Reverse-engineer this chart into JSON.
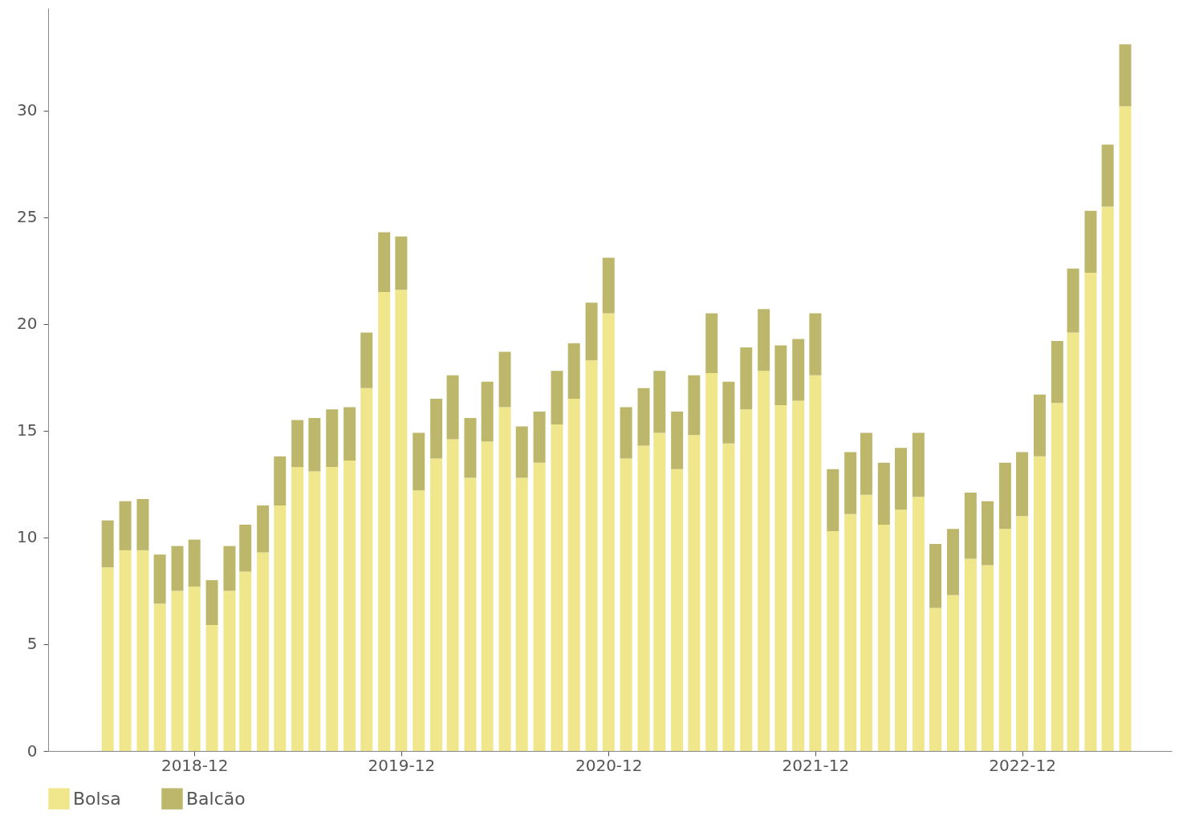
{
  "chart_data": {
    "type": "bar",
    "stacked": true,
    "x": [
      "2018-07",
      "2018-08",
      "2018-09",
      "2018-10",
      "2018-11",
      "2018-12",
      "2019-01",
      "2019-02",
      "2019-03",
      "2019-04",
      "2019-05",
      "2019-06",
      "2019-07",
      "2019-08",
      "2019-09",
      "2019-10",
      "2019-11",
      "2019-12",
      "2020-01",
      "2020-02",
      "2020-03",
      "2020-04",
      "2020-05",
      "2020-06",
      "2020-07",
      "2020-08",
      "2020-09",
      "2020-10",
      "2020-11",
      "2020-12",
      "2021-01",
      "2021-02",
      "2021-03",
      "2021-04",
      "2021-05",
      "2021-06",
      "2021-07",
      "2021-08",
      "2021-09",
      "2021-10",
      "2021-11",
      "2021-12",
      "2022-01",
      "2022-02",
      "2022-03",
      "2022-04",
      "2022-05",
      "2022-06",
      "2022-07",
      "2022-08",
      "2022-09",
      "2022-10",
      "2022-11",
      "2022-12",
      "2023-01",
      "2023-02",
      "2023-03",
      "2023-04",
      "2023-05",
      "2023-06"
    ],
    "series": [
      {
        "name": "Bolsa",
        "color": "#f0e68c",
        "values": [
          8.6,
          9.4,
          9.4,
          6.9,
          7.5,
          7.7,
          5.9,
          7.5,
          8.4,
          9.3,
          11.5,
          13.3,
          13.1,
          13.3,
          13.6,
          17.0,
          21.5,
          21.6,
          12.2,
          13.7,
          14.6,
          12.8,
          14.5,
          16.1,
          12.8,
          13.5,
          15.3,
          16.5,
          18.3,
          20.5,
          13.7,
          14.3,
          14.9,
          13.2,
          14.8,
          17.7,
          14.4,
          16.0,
          17.8,
          16.2,
          16.4,
          17.6,
          10.3,
          11.1,
          12.0,
          10.6,
          11.3,
          11.9,
          6.7,
          7.3,
          9.0,
          8.7,
          10.4,
          11.0,
          13.8,
          16.3,
          19.6,
          22.4,
          25.5,
          30.2
        ]
      },
      {
        "name": "Balcão",
        "color": "#bdb76b",
        "values": [
          2.2,
          2.3,
          2.4,
          2.3,
          2.1,
          2.2,
          2.1,
          2.1,
          2.2,
          2.2,
          2.3,
          2.2,
          2.5,
          2.7,
          2.5,
          2.6,
          2.8,
          2.5,
          2.7,
          2.8,
          3.0,
          2.8,
          2.8,
          2.6,
          2.4,
          2.4,
          2.5,
          2.6,
          2.7,
          2.6,
          2.4,
          2.7,
          2.9,
          2.7,
          2.8,
          2.8,
          2.9,
          2.9,
          2.9,
          2.8,
          2.9,
          2.9,
          2.9,
          2.9,
          2.9,
          2.9,
          2.9,
          3.0,
          3.0,
          3.1,
          3.1,
          3.0,
          3.1,
          3.0,
          2.9,
          2.9,
          3.0,
          2.9,
          2.9,
          2.9
        ]
      }
    ],
    "xlim": [
      "2018-03-25",
      "2023-08-15"
    ],
    "xticks": [
      {
        "value": "2018-12",
        "label": "2018-12"
      },
      {
        "value": "2019-12",
        "label": "2019-12"
      },
      {
        "value": "2020-12",
        "label": "2020-12"
      },
      {
        "value": "2021-12",
        "label": "2021-12"
      },
      {
        "value": "2022-12",
        "label": "2022-12"
      }
    ],
    "ylim": [
      0,
      34.8
    ],
    "yticks": [
      0,
      5,
      10,
      15,
      20,
      25,
      30
    ],
    "grid": false,
    "legend": "bottom"
  }
}
